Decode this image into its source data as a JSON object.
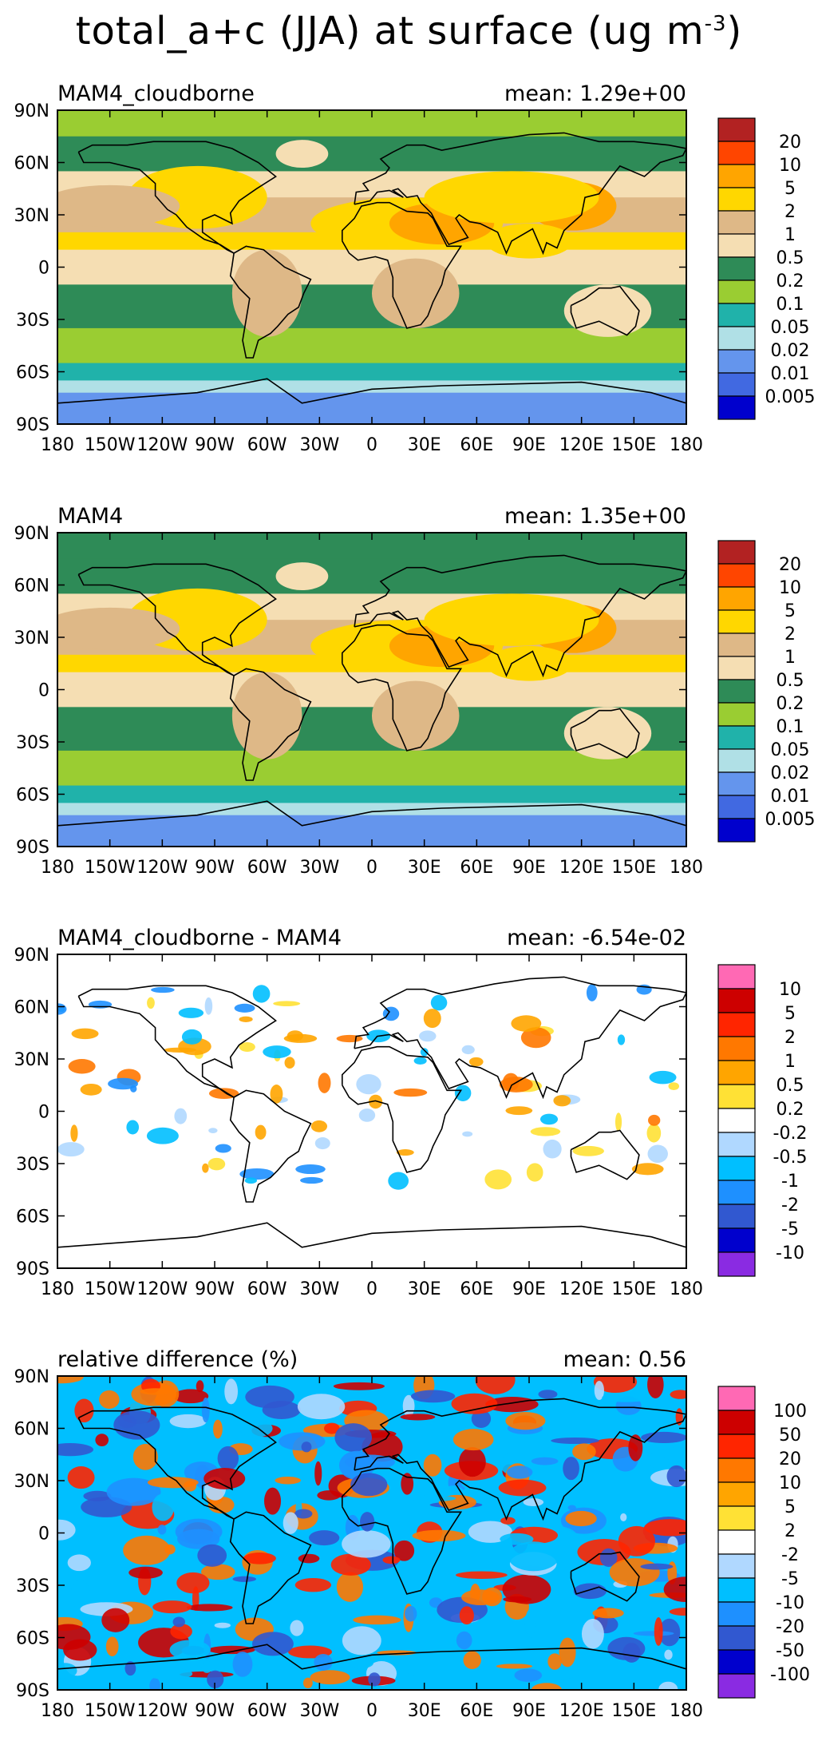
{
  "figure": {
    "title_main": "total_a+c (JJA) at surface (ug m",
    "title_sup": "-3",
    "title_close": ")"
  },
  "chart_data": [
    {
      "type": "heatmap",
      "title": "MAM4_cloudborne",
      "mean_label": "mean:  1.29e+00",
      "mean": 1.29,
      "xlim": [
        -180,
        180
      ],
      "ylim": [
        -90,
        90
      ],
      "x_ticks": [
        "180",
        "150W",
        "120W",
        "90W",
        "60W",
        "30W",
        "0",
        "30E",
        "60E",
        "90E",
        "120E",
        "150E",
        "180"
      ],
      "y_ticks": [
        "90N",
        "60N",
        "30N",
        "0",
        "30S",
        "60S",
        "90S"
      ],
      "colorbar_levels": [
        "20",
        "10",
        "5",
        "2",
        "1",
        "0.5",
        "0.2",
        "0.1",
        "0.05",
        "0.02",
        "0.01",
        "0.005"
      ],
      "colorbar_colors": [
        "#b22222",
        "#ff4500",
        "#ffa500",
        "#ffd700",
        "#deb887",
        "#f5deb3",
        "#2e8b57",
        "#9acd32",
        "#20b2aa",
        "#b0e0e6",
        "#6495ed",
        "#4169e1",
        "#0000cd"
      ]
    },
    {
      "type": "heatmap",
      "title": "MAM4",
      "mean_label": "mean:  1.35e+00",
      "mean": 1.35,
      "xlim": [
        -180,
        180
      ],
      "ylim": [
        -90,
        90
      ],
      "x_ticks": [
        "180",
        "150W",
        "120W",
        "90W",
        "60W",
        "30W",
        "0",
        "30E",
        "60E",
        "90E",
        "120E",
        "150E",
        "180"
      ],
      "y_ticks": [
        "90N",
        "60N",
        "30N",
        "0",
        "30S",
        "60S",
        "90S"
      ],
      "colorbar_levels": [
        "20",
        "10",
        "5",
        "2",
        "1",
        "0.5",
        "0.2",
        "0.1",
        "0.05",
        "0.02",
        "0.01",
        "0.005"
      ],
      "colorbar_colors": [
        "#b22222",
        "#ff4500",
        "#ffa500",
        "#ffd700",
        "#deb887",
        "#f5deb3",
        "#2e8b57",
        "#9acd32",
        "#20b2aa",
        "#b0e0e6",
        "#6495ed",
        "#4169e1",
        "#0000cd"
      ]
    },
    {
      "type": "heatmap",
      "title": "MAM4_cloudborne - MAM4",
      "mean_label": "mean: -6.54e-02",
      "mean": -0.0654,
      "xlim": [
        -180,
        180
      ],
      "ylim": [
        -90,
        90
      ],
      "x_ticks": [
        "180",
        "150W",
        "120W",
        "90W",
        "60W",
        "30W",
        "0",
        "30E",
        "60E",
        "90E",
        "120E",
        "150E",
        "180"
      ],
      "y_ticks": [
        "90N",
        "60N",
        "30N",
        "0",
        "30S",
        "60S",
        "90S"
      ],
      "colorbar_levels": [
        "10",
        "5",
        "2",
        "1",
        "0.5",
        "0.2",
        "-0.2",
        "-0.5",
        "-1",
        "-2",
        "-5",
        "-10"
      ],
      "colorbar_colors": [
        "#ff69b4",
        "#cd0000",
        "#ff2500",
        "#ff7800",
        "#ffa500",
        "#ffe135",
        "#ffffff",
        "#b0d8ff",
        "#00bfff",
        "#1e90ff",
        "#3158d0",
        "#0000cd",
        "#8a2be2"
      ]
    },
    {
      "type": "heatmap",
      "title": "relative difference (%)",
      "mean_label": "mean:   0.56",
      "mean": 0.56,
      "xlim": [
        -180,
        180
      ],
      "ylim": [
        -90,
        90
      ],
      "x_ticks": [
        "180",
        "150W",
        "120W",
        "90W",
        "60W",
        "30W",
        "0",
        "30E",
        "60E",
        "90E",
        "120E",
        "150E",
        "180"
      ],
      "y_ticks": [
        "90N",
        "60N",
        "30N",
        "0",
        "30S",
        "60S",
        "90S"
      ],
      "colorbar_levels": [
        "100",
        "50",
        "20",
        "10",
        "5",
        "2",
        "-2",
        "-5",
        "-10",
        "-20",
        "-50",
        "-100"
      ],
      "colorbar_colors": [
        "#ff69b4",
        "#cd0000",
        "#ff2500",
        "#ff7800",
        "#ffa500",
        "#ffe135",
        "#ffffff",
        "#b0d8ff",
        "#00bfff",
        "#1e90ff",
        "#3158d0",
        "#0000cd",
        "#8a2be2"
      ]
    }
  ]
}
